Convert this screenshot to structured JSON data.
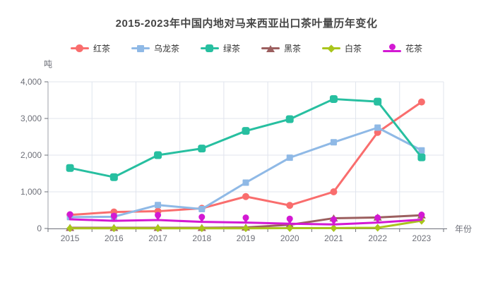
{
  "title": "2015-2023年中国内地对马来西亚出口茶叶量历年变化",
  "chart_data": {
    "type": "line",
    "title": "2015-2023年中国内地对马来西亚出口茶叶量历年变化",
    "ylabel": "吨",
    "xlabel": "年份",
    "ylim": [
      0,
      4000
    ],
    "yticks": [
      "0",
      "1,000",
      "2,000",
      "3,000",
      "4,000"
    ],
    "ytick_values": [
      0,
      1000,
      2000,
      3000,
      4000
    ],
    "grid": true,
    "legend_position": "top",
    "categories": [
      "2015",
      "2016",
      "2017",
      "2018",
      "2019",
      "2020",
      "2021",
      "2022",
      "2023"
    ],
    "series": [
      {
        "name": "红茶",
        "color": "#f96d6d",
        "symbol": "circle",
        "values": [
          370,
          450,
          470,
          550,
          870,
          630,
          1000,
          2620,
          3450
        ]
      },
      {
        "name": "乌龙茶",
        "color": "#8fb9e6",
        "symbol": "square",
        "values": [
          310,
          320,
          640,
          530,
          1250,
          1930,
          2350,
          2750,
          2130
        ]
      },
      {
        "name": "绿茶",
        "color": "#27bfa0",
        "symbol": "roundRect",
        "values": [
          1650,
          1400,
          2000,
          2180,
          2660,
          2980,
          3530,
          3460,
          1940
        ]
      },
      {
        "name": "黑茶",
        "color": "#9c5f5f",
        "symbol": "triangle",
        "values": [
          20,
          20,
          20,
          20,
          30,
          100,
          280,
          300,
          360
        ]
      },
      {
        "name": "白茶",
        "color": "#a9c51c",
        "symbol": "diamond",
        "values": [
          5,
          5,
          5,
          5,
          5,
          10,
          10,
          20,
          210
        ]
      },
      {
        "name": "花茶",
        "color": "#d319d3",
        "symbol": "pin",
        "values": [
          250,
          210,
          230,
          180,
          160,
          130,
          110,
          160,
          240
        ]
      }
    ],
    "colors": {
      "grid_line": "#e0e4ee",
      "x_axis": "#6E7079",
      "y_axis": "#9da0a8",
      "tick_label": "#6E7079",
      "title_text": "#464646",
      "legend_text": "#333333"
    }
  }
}
